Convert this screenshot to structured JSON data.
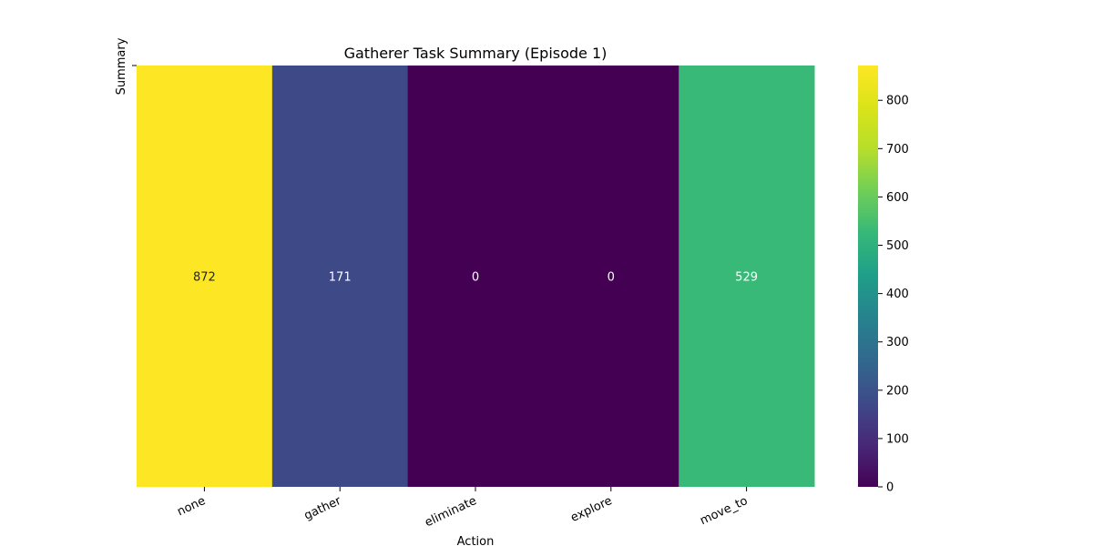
{
  "chart_data": {
    "type": "heatmap",
    "title": "Gatherer Task Summary (Episode 1)",
    "xlabel": "Action",
    "ylabel": "Summary",
    "categories": [
      "none",
      "gather",
      "eliminate",
      "explore",
      "move_to"
    ],
    "values": [
      872,
      171,
      0,
      0,
      529
    ],
    "colormap": "viridis",
    "colorbar": {
      "range": [
        0,
        872
      ],
      "ticks": [
        0,
        100,
        200,
        300,
        400,
        500,
        600,
        700,
        800
      ]
    },
    "grid": false,
    "legend": "colorbar-right"
  }
}
